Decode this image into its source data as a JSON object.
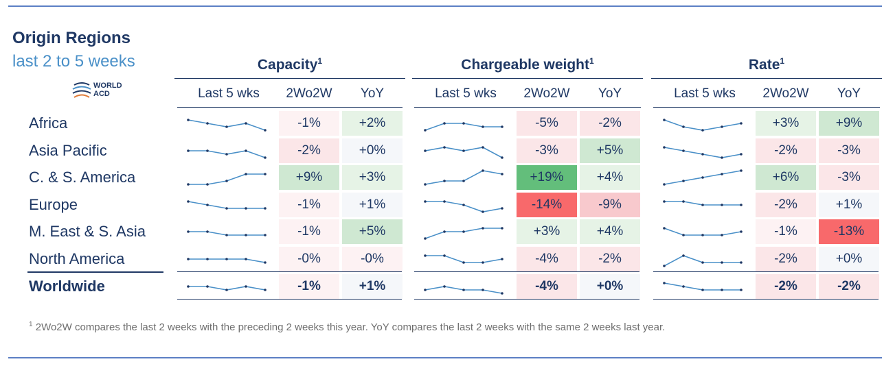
{
  "header": {
    "title": "Origin Regions",
    "subtitle": "last 2 to 5 weeks",
    "logo_text": [
      "WORLD",
      "ACD"
    ]
  },
  "groups": [
    {
      "title": "Capacity",
      "sup": "1"
    },
    {
      "title": "Chargeable weight",
      "sup": "1"
    },
    {
      "title": "Rate",
      "sup": "1"
    }
  ],
  "columns": [
    "Last 5 wks",
    "2Wo2W",
    "YoY"
  ],
  "colors": {
    "navy": "#1f3864",
    "sparkline": "#4a90c8",
    "pos_light": "#e6f3e6",
    "pos_mid": "#cfe8d2",
    "pos_strong": "#63be7b",
    "neg_light": "#fbe6e8",
    "neg_mid": "#f8c9cd",
    "neg_strong": "#f8696b",
    "neutral": "#f5f7fa"
  },
  "rows": [
    {
      "region": "Africa",
      "capacity": {
        "trend": [
          4,
          3,
          2,
          3,
          1
        ],
        "wow": "-1%",
        "yoy": "+2%"
      },
      "weight": {
        "trend": [
          1,
          3,
          3,
          2,
          2
        ],
        "wow": "-5%",
        "yoy": "-2%"
      },
      "rate": {
        "trend": [
          4,
          2,
          1,
          2,
          3
        ],
        "wow": "+3%",
        "yoy": "+9%"
      }
    },
    {
      "region": "Asia Pacific",
      "capacity": {
        "trend": [
          3,
          3,
          2,
          3,
          1
        ],
        "wow": "-2%",
        "yoy": "+0%"
      },
      "weight": {
        "trend": [
          3,
          4,
          3,
          4,
          1
        ],
        "wow": "-3%",
        "yoy": "+5%"
      },
      "rate": {
        "trend": [
          4,
          3,
          2,
          1,
          2
        ],
        "wow": "-2%",
        "yoy": "-3%"
      }
    },
    {
      "region": "C. & S. America",
      "capacity": {
        "trend": [
          1,
          1,
          2,
          4,
          4
        ],
        "wow": "+9%",
        "yoy": "+3%"
      },
      "weight": {
        "trend": [
          1,
          2,
          2,
          5,
          4
        ],
        "wow": "+19%",
        "yoy": "+4%"
      },
      "rate": {
        "trend": [
          1,
          2,
          3,
          4,
          5
        ],
        "wow": "+6%",
        "yoy": "-3%"
      }
    },
    {
      "region": "Europe",
      "capacity": {
        "trend": [
          4,
          3,
          2,
          2,
          2
        ],
        "wow": "-1%",
        "yoy": "+1%"
      },
      "weight": {
        "trend": [
          4,
          4,
          3,
          1,
          2
        ],
        "wow": "-14%",
        "yoy": "-9%"
      },
      "rate": {
        "trend": [
          4,
          4,
          3,
          3,
          3
        ],
        "wow": "-2%",
        "yoy": "+1%"
      }
    },
    {
      "region": "M. East & S. Asia",
      "capacity": {
        "trend": [
          3,
          3,
          2,
          2,
          2
        ],
        "wow": "-1%",
        "yoy": "+5%"
      },
      "weight": {
        "trend": [
          1,
          3,
          3,
          4,
          4
        ],
        "wow": "+3%",
        "yoy": "+4%"
      },
      "rate": {
        "trend": [
          4,
          2,
          2,
          2,
          3
        ],
        "wow": "-1%",
        "yoy": "-13%"
      }
    },
    {
      "region": "North America",
      "capacity": {
        "trend": [
          3,
          3,
          3,
          3,
          2
        ],
        "wow": "-0%",
        "yoy": "-0%"
      },
      "weight": {
        "trend": [
          4,
          4,
          2,
          2,
          3
        ],
        "wow": "-4%",
        "yoy": "-2%"
      },
      "rate": {
        "trend": [
          1,
          4,
          2,
          2,
          2
        ],
        "wow": "-2%",
        "yoy": "+0%"
      }
    },
    {
      "region": "Worldwide",
      "capacity": {
        "trend": [
          3,
          3,
          2,
          3,
          2
        ],
        "wow": "-1%",
        "yoy": "+1%"
      },
      "weight": {
        "trend": [
          2,
          3,
          2,
          2,
          1
        ],
        "wow": "-4%",
        "yoy": "+0%"
      },
      "rate": {
        "trend": [
          4,
          3,
          2,
          2,
          2
        ],
        "wow": "-2%",
        "yoy": "-2%"
      }
    }
  ],
  "footnote_mark": "1",
  "footnote": "2Wo2W compares the last 2 weeks with the preceding 2 weeks this year. YoY compares the last 2 weeks with the same 2 weeks last year."
}
